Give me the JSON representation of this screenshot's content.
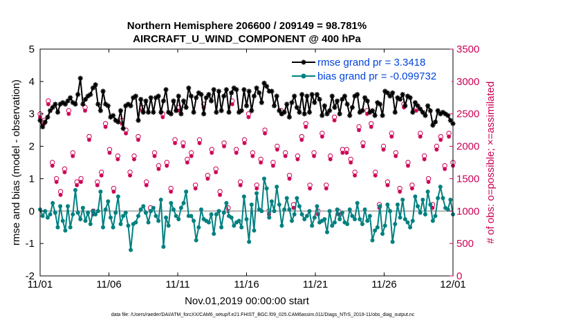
{
  "chart_data": {
    "type": "line",
    "title": "Northern Hemisphere 206600 / 209149 = 98.781%",
    "subtitle": "AIRCRAFT_U_WIND_COMPONENT @ 400 hPa",
    "xlabel": "Nov.01,2019 00:00:00 start",
    "ylabel": "rmse and bias (model - observation)",
    "ylabel_right": "# of obs: o=possible; ×=assimilated",
    "footer": "data file: /Users/raeder/DAI/ATM_forcXX/CAM6_setup/f.e21.FHIST_BGC.f09_025.CAM6assim.011/Diags_NTrS_2019-11/obs_diag_output.nc",
    "x_range": [
      0,
      30
    ],
    "x_ticks": [
      0,
      5,
      10,
      15,
      20,
      25,
      30
    ],
    "x_tick_labels": [
      "11/01",
      "11/06",
      "11/11",
      "11/16",
      "11/21",
      "11/26",
      "12/01"
    ],
    "ylim": [
      -2,
      5
    ],
    "y_ticks": [
      -2,
      -1,
      0,
      1,
      2,
      3,
      4,
      5
    ],
    "y_tick_labels": [
      "-2",
      "-1",
      "0",
      "1",
      "2",
      "3",
      "4",
      "5"
    ],
    "ylim_right": [
      0,
      3500
    ],
    "y_ticks_right": [
      0,
      500,
      1000,
      1500,
      2000,
      2500,
      3000,
      3500
    ],
    "y_tick_labels_right": [
      "0",
      "500",
      "1000",
      "1500",
      "2000",
      "2500",
      "3000",
      "3500"
    ],
    "legend": [
      {
        "label": "rmse grand pr = 3.3418",
        "color": "#000000"
      },
      {
        "label": "bias grand pr = -0.099732",
        "color": "#008080"
      }
    ],
    "zero_line": 0,
    "series": [
      {
        "name": "rmse",
        "color": "#000000",
        "values": [
          2.8,
          2.6,
          2.75,
          2.9,
          3.1,
          3.2,
          3.3,
          3.05,
          3.3,
          3.35,
          3.3,
          3.4,
          3.5,
          3.35,
          3.3,
          3.6,
          4.1,
          3.3,
          3.45,
          3.55,
          3.6,
          3.8,
          3.9,
          3.3,
          3.1,
          3.7,
          3.3,
          3.25,
          2.9,
          2.95,
          2.8,
          2.75,
          3.1,
          2.55,
          3.25,
          3.3,
          3.25,
          3.5,
          3.55,
          2.8,
          3.45,
          3.05,
          3.4,
          3.05,
          3.5,
          3.05,
          3.5,
          3.55,
          3.05,
          3.4,
          3.75,
          3.05,
          3.0,
          3.4,
          3.1,
          3.55,
          3.0,
          3.4,
          3.2,
          3.8,
          3.55,
          3.05,
          3.5,
          3.65,
          3.6,
          3.0,
          3.5,
          3.6,
          3.4,
          3.75,
          3.05,
          3.7,
          3.1,
          3.55,
          3.75,
          3.05,
          3.65,
          3.8,
          3.75,
          3.05,
          3.1,
          3.75,
          3.25,
          3.7,
          3.1,
          3.55,
          3.8,
          3.65,
          3.35,
          3.95,
          3.85,
          3.7,
          3.7,
          3.25,
          3.55,
          3.1,
          3.0,
          3.05,
          3.3,
          2.9,
          3.35,
          3.55,
          3.2,
          3.05,
          3.6,
          3.0,
          3.55,
          3.05,
          3.6,
          3.35,
          3.6,
          3.45,
          2.95,
          3.25,
          3.0,
          3.1,
          3.55,
          3.2,
          3.4,
          3.0,
          3.45,
          3.55,
          3.3,
          2.95,
          3.2,
          3.55,
          3.6,
          3.05,
          3.1,
          3.5,
          3.4,
          3.05,
          3.1,
          2.95,
          3.35,
          3.3,
          2.95,
          3.7,
          3.65,
          3.55,
          3.65,
          3.05,
          3.5,
          3.45,
          3.6,
          3.25,
          3.55,
          3.5,
          3.05,
          3.35,
          3.25,
          3.15,
          3.05,
          2.95,
          3.25,
          3.1,
          2.65,
          2.75,
          3.1,
          3.0,
          3.05,
          3.0,
          2.95,
          2.8,
          2.7
        ]
      },
      {
        "name": "bias",
        "color": "#008080",
        "values": [
          0.05,
          -0.15,
          0.0,
          -0.2,
          -0.1,
          0.25,
          -0.05,
          -0.5,
          0.15,
          -0.3,
          -0.6,
          0.15,
          -0.5,
          -0.1,
          0.65,
          -0.05,
          -0.25,
          0.1,
          -0.3,
          -0.05,
          -0.4,
          0.0,
          -0.1,
          0.0,
          0.6,
          -0.5,
          0.05,
          0.3,
          -0.2,
          -0.5,
          -0.05,
          0.45,
          -0.4,
          -0.15,
          -0.05,
          -0.45,
          -1.2,
          -0.4,
          -0.35,
          -0.15,
          0.05,
          0.15,
          -0.05,
          -0.35,
          0.0,
          0.1,
          -0.15,
          -0.3,
          0.35,
          -1.1,
          -0.2,
          -0.45,
          0.25,
          0.05,
          -0.15,
          -0.25,
          0.1,
          0.25,
          0.6,
          -0.15,
          -0.15,
          -0.3,
          -0.9,
          -0.5,
          0.05,
          -0.25,
          -0.3,
          -0.35,
          -0.1,
          -0.7,
          -0.1,
          0.0,
          -0.5,
          -0.05,
          0.25,
          -0.15,
          -0.2,
          -0.45,
          -0.35,
          -0.3,
          -0.5,
          0.45,
          -0.25,
          -0.95,
          0.2,
          -0.6,
          0.55,
          0.05,
          0.0,
          1.0,
          0.7,
          -0.2,
          0.3,
          0.0,
          0.75,
          0.2,
          -0.45,
          0.05,
          0.4,
          0.05,
          -0.3,
          -0.1,
          0.4,
          0.15,
          -0.1,
          -0.25,
          -0.15,
          0.0,
          -0.45,
          -0.2,
          0.15,
          -0.35,
          -0.3,
          -0.25,
          -0.65,
          0.0,
          -0.45,
          -0.35,
          0.05,
          -0.25,
          -0.05,
          -0.35,
          -0.4,
          0.05,
          -0.15,
          -0.25,
          0.25,
          -0.25,
          -0.4,
          0.05,
          -0.3,
          -0.15,
          -0.9,
          -0.6,
          -0.5,
          0.15,
          -0.7,
          -0.45,
          0.2,
          0.0,
          -0.95,
          -0.4,
          0.2,
          -0.2,
          0.35,
          -0.25,
          -0.35,
          -0.5,
          -0.3,
          0.45,
          0.15,
          -0.05,
          0.35,
          -0.1,
          0.6,
          0.2,
          -0.3,
          -0.15,
          0.4,
          0.75,
          0.4,
          0.1,
          0.05,
          0.35,
          -0.1
        ]
      },
      {
        "name": "obs possible",
        "axis": "right",
        "color": "#cc0055",
        "values": [
          2500,
          2400,
          2700,
          1750,
          1500,
          1300,
          1650,
          2550,
          1900,
          1450,
          1500,
          2600,
          2150,
          1000,
          1450,
          1600,
          2350,
          1950,
          1350,
          1850,
          2400,
          2250,
          1600,
          1850,
          2150,
          2600,
          1450,
          1050,
          1900,
          1700,
          2500,
          1750,
          1350,
          2100,
          2600,
          2050,
          1800,
          1900,
          1400,
          2100,
          2650,
          1550,
          1950,
          1650,
          1300,
          2050,
          1050,
          2700,
          1950,
          1450,
          2100,
          2500,
          1900,
          1400,
          1800,
          2250,
          1000,
          1750,
          2000,
          2550,
          1900,
          1550,
          1100,
          1850,
          2150,
          2350,
          1400,
          1900,
          1000,
          2200,
          1400,
          1850,
          2450,
          1000,
          1950,
          1950,
          1800,
          1600,
          2300,
          2050,
          2550,
          2350,
          1600,
          1100,
          2000,
          1450,
          2200,
          1900,
          1350,
          2650,
          1750,
          1400,
          2600,
          2200,
          1850,
          1500,
          1100,
          2000,
          2150,
          1700,
          2200,
          1750
        ]
      },
      {
        "name": "obs assimilated",
        "axis": "right",
        "color": "#cc0055",
        "values": [
          2450,
          2350,
          2650,
          1700,
          1450,
          1250,
          1600,
          2500,
          1850,
          1400,
          1450,
          2550,
          2100,
          950,
          1400,
          1550,
          2300,
          1900,
          1300,
          1800,
          2350,
          2200,
          1550,
          1800,
          2100,
          2550,
          1400,
          1000,
          1850,
          1650,
          2450,
          1700,
          1300,
          2050,
          2550,
          2000,
          1750,
          1850,
          1350,
          2050,
          2600,
          1500,
          1900,
          1600,
          1250,
          2000,
          1000,
          2650,
          1900,
          1400,
          2050,
          2450,
          1850,
          1350,
          1750,
          2200,
          950,
          1700,
          1950,
          2500,
          1850,
          1500,
          1050,
          1800,
          2100,
          2300,
          1350,
          1850,
          950,
          2150,
          1350,
          1800,
          2400,
          950,
          1900,
          1900,
          1750,
          1550,
          2250,
          2000,
          2500,
          2300,
          1550,
          1050,
          1950,
          1400,
          2150,
          1850,
          1300,
          2600,
          1700,
          1350,
          2550,
          2150,
          1800,
          1450,
          1050,
          1950,
          2100,
          1650,
          2150,
          1700
        ]
      }
    ]
  }
}
